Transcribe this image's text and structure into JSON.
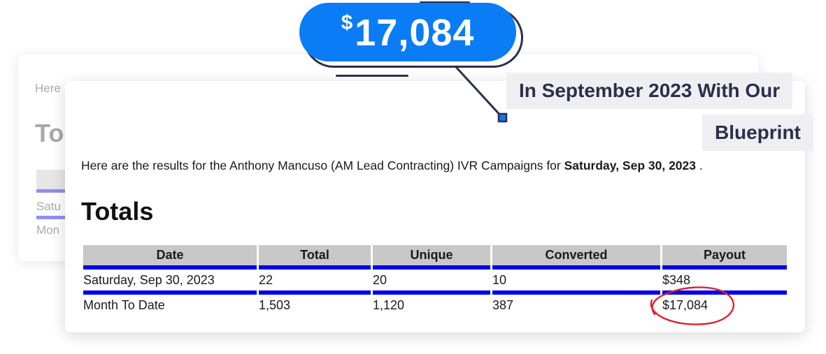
{
  "background_card": {
    "here_text": "Here",
    "totals_partial": "To",
    "row1_partial": "Satu",
    "row2_partial": "Mon"
  },
  "callout": {
    "currency_symbol": "$",
    "amount": "17,084",
    "caption_line1": "In September 2023 With Our",
    "caption_line2": "Blueprint",
    "badge_color": "#0a7cf5",
    "outline_color": "#2a2f4a"
  },
  "report": {
    "intro_prefix": "Here are the results for the Anthony Mancuso (AM Lead Contracting) IVR Campaigns for ",
    "intro_date": "Saturday, Sep 30, 2023",
    "intro_suffix": " .",
    "heading": "Totals",
    "columns": [
      "Date",
      "Total",
      "Unique",
      "Converted",
      "Payout"
    ],
    "rows": [
      [
        "Saturday, Sep 30, 2023",
        "22",
        "20",
        "10",
        "$348"
      ],
      [
        "Month To Date",
        "1,503",
        "1,120",
        "387",
        "$17,084"
      ]
    ],
    "header_bg": "#c8c8c8",
    "row_rule_color": "#0000ee",
    "highlight_circle_color": "#d9262b"
  }
}
